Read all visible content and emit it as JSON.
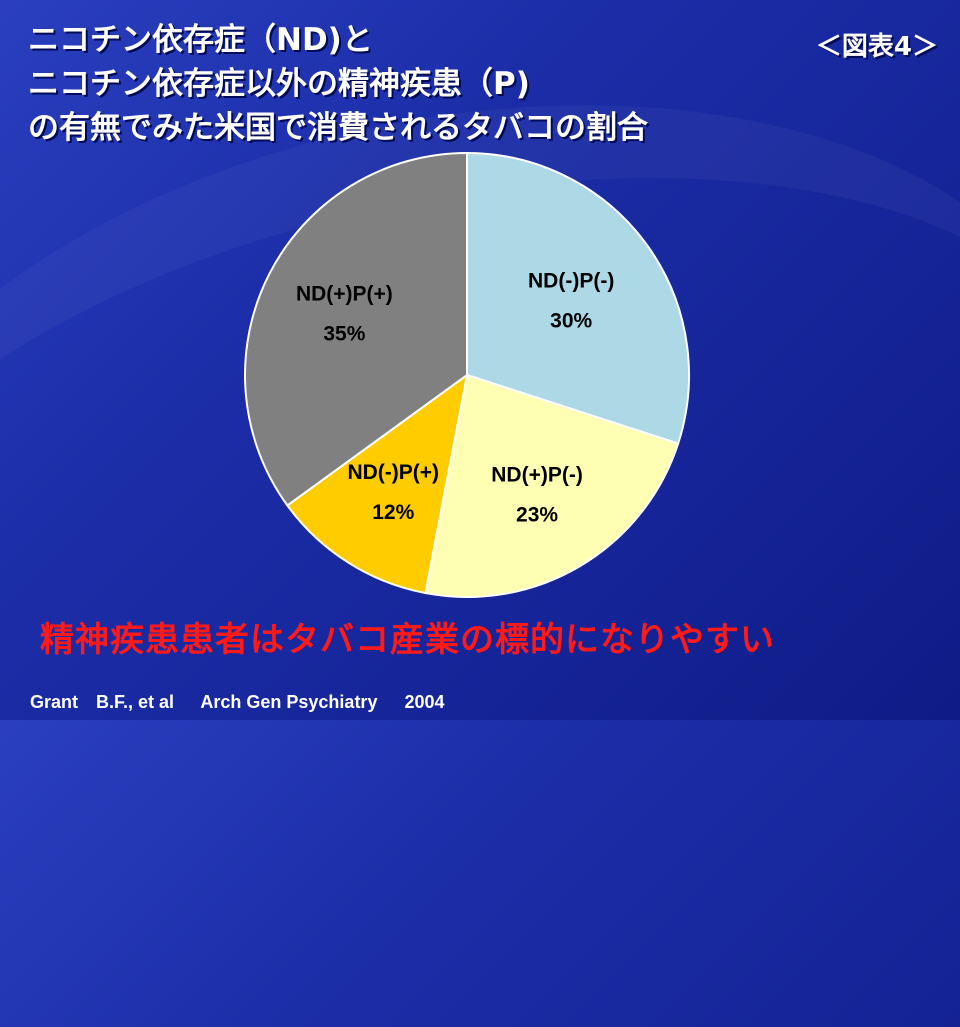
{
  "slide": {
    "title_lines": [
      "ニコチン依存症（ND)と",
      "ニコチン依存症以外の精神疾患（P)",
      "の有無でみた米国で消費されるタバコの割合"
    ],
    "figure_label": "＜図表4＞",
    "conclusion": "精神疾患患者はタバコ産業の標的になりやすい",
    "citation": {
      "author": "Grant　B.F., et al",
      "journal": "Arch Gen Psychiatry",
      "year": "2004"
    }
  },
  "chart_data": {
    "type": "pie",
    "start_angle_deg": 0,
    "direction": "clockwise",
    "slices": [
      {
        "label": "ND(-)P(-)",
        "value": 30,
        "value_label": "30%",
        "color": "#add8e6"
      },
      {
        "label": "ND(+)P(-)",
        "value": 23,
        "value_label": "23%",
        "color": "#ffffb3"
      },
      {
        "label": "ND(-)P(+)",
        "value": 12,
        "value_label": "12%",
        "color": "#ffcc00"
      },
      {
        "label": "ND(+)P(+)",
        "value": 35,
        "value_label": "35%",
        "color": "#808080"
      }
    ]
  }
}
